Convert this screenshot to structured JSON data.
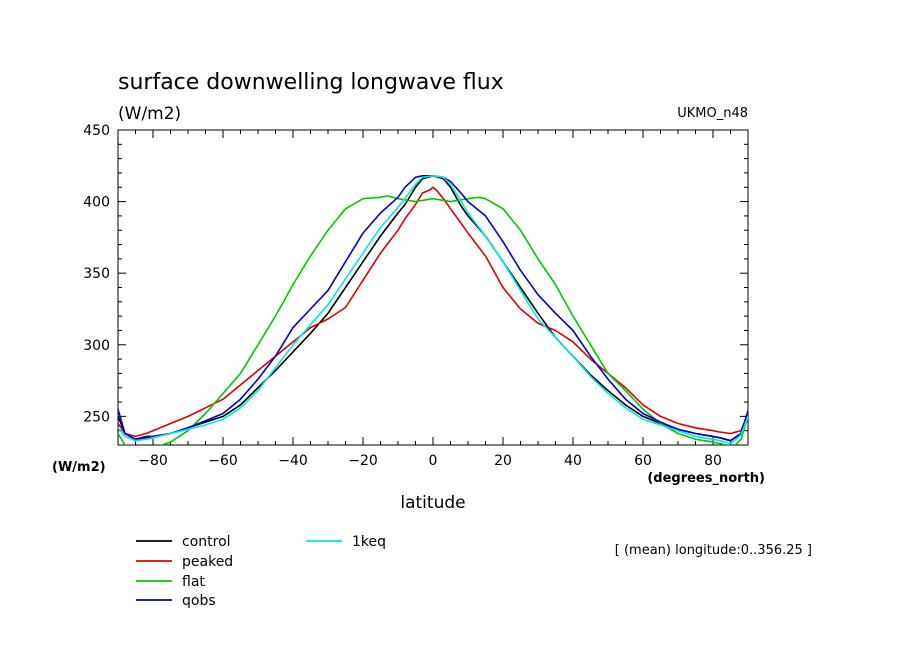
{
  "chart_data": {
    "type": "line",
    "title": "surface downwelling longwave flux",
    "units": "(W/m2)",
    "model": "UKMO_n48",
    "xlabel": "latitude",
    "xunits": "(degrees_north)",
    "yunits": "(W/m2)",
    "note": "[ (mean) longitude:0..356.25 ]",
    "xlim": [
      -90,
      90
    ],
    "ylim": [
      230,
      450
    ],
    "xticks": [
      -80,
      -60,
      -40,
      -20,
      0,
      20,
      40,
      60,
      80
    ],
    "yticks": [
      250,
      300,
      350,
      400,
      450
    ],
    "grid": false,
    "legend_position": "bottom-left",
    "series": [
      {
        "name": "control",
        "color": "#000000",
        "x": [
          -90,
          -88,
          -85,
          -82,
          -80,
          -75,
          -70,
          -65,
          -60,
          -55,
          -50,
          -45,
          -40,
          -35,
          -30,
          -25,
          -20,
          -15,
          -10,
          -8,
          -5,
          -3,
          0,
          3,
          5,
          8,
          10,
          15,
          20,
          25,
          30,
          35,
          40,
          45,
          50,
          55,
          60,
          65,
          70,
          75,
          80,
          82,
          85,
          88,
          90
        ],
        "y": [
          250,
          238,
          234,
          235,
          236,
          238,
          242,
          246,
          250,
          258,
          270,
          282,
          295,
          308,
          322,
          340,
          358,
          376,
          392,
          398,
          410,
          416,
          418,
          416,
          410,
          397,
          390,
          376,
          358,
          340,
          322,
          305,
          292,
          279,
          268,
          258,
          250,
          245,
          241,
          238,
          236,
          235,
          233,
          238,
          252
        ]
      },
      {
        "name": "peaked",
        "color": "#e00000",
        "x": [
          -90,
          -88,
          -85,
          -82,
          -80,
          -75,
          -70,
          -65,
          -60,
          -55,
          -50,
          -45,
          -40,
          -35,
          -30,
          -25,
          -20,
          -15,
          -10,
          -8,
          -5,
          -3,
          -1,
          0,
          1,
          3,
          5,
          8,
          10,
          15,
          20,
          25,
          30,
          35,
          40,
          45,
          50,
          55,
          60,
          65,
          70,
          75,
          80,
          82,
          85,
          88,
          90
        ],
        "y": [
          245,
          238,
          236,
          238,
          240,
          245,
          250,
          256,
          262,
          272,
          282,
          292,
          302,
          312,
          318,
          326,
          345,
          364,
          380,
          388,
          398,
          406,
          408,
          410,
          408,
          402,
          395,
          385,
          378,
          362,
          340,
          325,
          315,
          310,
          302,
          290,
          280,
          270,
          258,
          250,
          245,
          242,
          240,
          239,
          238,
          240,
          252
        ]
      },
      {
        "name": "flat",
        "color": "#00c800",
        "x": [
          -90,
          -88,
          -86,
          -84,
          -82,
          -80,
          -75,
          -70,
          -65,
          -60,
          -55,
          -50,
          -45,
          -40,
          -35,
          -30,
          -25,
          -20,
          -15,
          -13,
          -10,
          -5,
          0,
          5,
          10,
          13,
          15,
          20,
          25,
          30,
          35,
          40,
          45,
          50,
          55,
          60,
          65,
          70,
          75,
          80,
          84,
          86,
          88,
          90
        ],
        "y": [
          238,
          230,
          226,
          227,
          228,
          228,
          232,
          240,
          252,
          266,
          280,
          300,
          320,
          342,
          362,
          380,
          395,
          402,
          403,
          404,
          402,
          400,
          402,
          400,
          402,
          403,
          402,
          395,
          380,
          360,
          342,
          320,
          300,
          280,
          268,
          255,
          245,
          238,
          234,
          232,
          230,
          229,
          234,
          250
        ]
      },
      {
        "name": "qobs",
        "color": "#0000d0",
        "x": [
          -90,
          -88,
          -85,
          -82,
          -80,
          -75,
          -70,
          -65,
          -60,
          -55,
          -50,
          -45,
          -40,
          -35,
          -30,
          -25,
          -20,
          -15,
          -10,
          -8,
          -5,
          -3,
          0,
          3,
          5,
          8,
          10,
          15,
          20,
          25,
          30,
          35,
          40,
          45,
          50,
          55,
          60,
          65,
          70,
          75,
          80,
          82,
          85,
          88,
          90
        ],
        "y": [
          255,
          238,
          234,
          236,
          236,
          238,
          242,
          247,
          252,
          262,
          276,
          292,
          312,
          325,
          338,
          358,
          378,
          392,
          403,
          410,
          417,
          418,
          418,
          417,
          414,
          406,
          400,
          390,
          372,
          352,
          335,
          322,
          310,
          292,
          276,
          262,
          252,
          246,
          241,
          238,
          236,
          235,
          233,
          238,
          254
        ]
      },
      {
        "name": "1keq",
        "color": "#00e8e8",
        "x": [
          -90,
          -88,
          -85,
          -82,
          -80,
          -75,
          -70,
          -65,
          -60,
          -55,
          -50,
          -45,
          -40,
          -35,
          -30,
          -25,
          -20,
          -15,
          -10,
          -8,
          -5,
          -3,
          0,
          3,
          5,
          8,
          10,
          15,
          20,
          25,
          30,
          35,
          40,
          45,
          50,
          55,
          60,
          65,
          70,
          75,
          80,
          82,
          85,
          88,
          90
        ],
        "y": [
          242,
          236,
          233,
          234,
          235,
          238,
          241,
          244,
          248,
          256,
          268,
          284,
          300,
          314,
          328,
          346,
          364,
          382,
          396,
          402,
          412,
          417,
          418,
          417,
          412,
          400,
          392,
          376,
          358,
          338,
          318,
          305,
          292,
          278,
          266,
          256,
          248,
          244,
          240,
          236,
          234,
          233,
          231,
          237,
          250
        ]
      }
    ]
  }
}
